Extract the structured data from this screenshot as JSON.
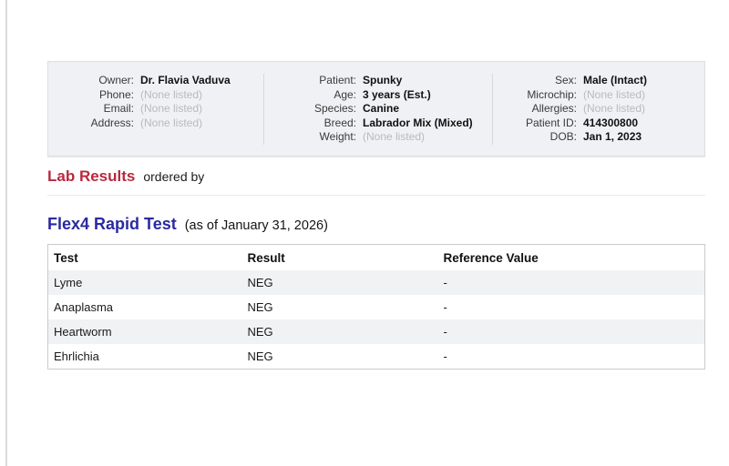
{
  "colors": {
    "lab_results_red": "#b8293d",
    "test_title_blue": "#2a2aa0",
    "muted_text": "#b9babc",
    "info_box_bg": "#f0f1f4"
  },
  "patient_info": {
    "columns": [
      {
        "rows": [
          {
            "label": "Owner:",
            "value": "Dr. Flavia Vaduva"
          },
          {
            "label": "Phone:",
            "value": "(None listed)"
          },
          {
            "label": "Email:",
            "value": "(None listed)"
          },
          {
            "label": "Address:",
            "value": "(None listed)"
          }
        ]
      },
      {
        "rows": [
          {
            "label": "Patient:",
            "value": "Spunky"
          },
          {
            "label": "Age:",
            "value": "3 years (Est.)"
          },
          {
            "label": "Species:",
            "value": "Canine"
          },
          {
            "label": "Breed:",
            "value": "Labrador Mix (Mixed)"
          },
          {
            "label": "Weight:",
            "value": "(None listed)"
          }
        ]
      },
      {
        "rows": [
          {
            "label": "Sex:",
            "value": "Male (Intact)"
          },
          {
            "label": "Microchip:",
            "value": "(None listed)"
          },
          {
            "label": "Allergies:",
            "value": "(None listed)"
          },
          {
            "label": "Patient ID:",
            "value": "414300800"
          },
          {
            "label": "DOB:",
            "value": "Jan 1, 2023"
          }
        ]
      }
    ]
  },
  "lab_results": {
    "title": "Lab Results",
    "subtitle": "ordered by"
  },
  "test_section": {
    "title": "Flex4 Rapid Test",
    "as_of": "(as of January 31, 2026)"
  },
  "results_table": {
    "headers": [
      "Test",
      "Result",
      "Reference Value"
    ],
    "rows": [
      [
        "Lyme",
        "NEG",
        "-"
      ],
      [
        "Anaplasma",
        "NEG",
        "-"
      ],
      [
        "Heartworm",
        "NEG",
        "-"
      ],
      [
        "Ehrlichia",
        "NEG",
        "-"
      ]
    ]
  }
}
